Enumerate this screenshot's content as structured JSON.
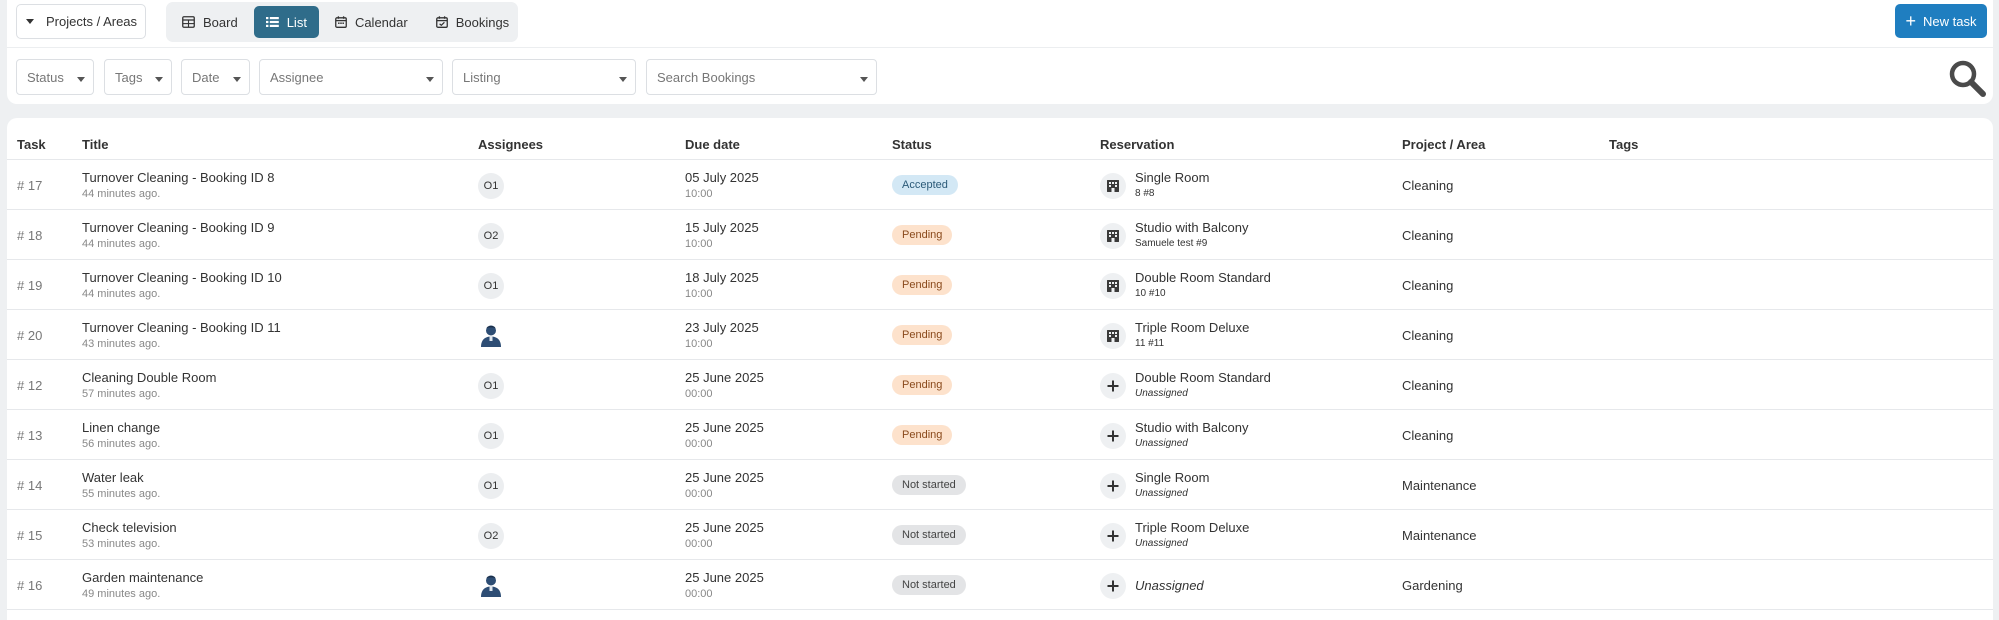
{
  "toolbar": {
    "project_selector": "Projects / Areas",
    "views": [
      {
        "label": "Board",
        "icon": "table-icon",
        "active": false
      },
      {
        "label": "List",
        "icon": "list-icon",
        "active": true
      },
      {
        "label": "Calendar",
        "icon": "calendar-icon",
        "active": false
      },
      {
        "label": "Bookings",
        "icon": "calendar-check-icon",
        "active": false
      }
    ],
    "new_task": "New task"
  },
  "filters": {
    "status": "Status",
    "tags": "Tags",
    "date": "Date",
    "assignee": "Assignee",
    "listing": "Listing",
    "search_bookings": "Search Bookings"
  },
  "table": {
    "headers": {
      "task": "Task",
      "title": "Title",
      "assignees": "Assignees",
      "due_date": "Due date",
      "status": "Status",
      "reservation": "Reservation",
      "project": "Project / Area",
      "tags": "Tags"
    },
    "rows": [
      {
        "id": "# 17",
        "title": "Turnover Cleaning - Booking ID 8",
        "created": "44 minutes ago.",
        "assignee": "O1",
        "due": "05 July 2025",
        "time": "10:00",
        "status": "Accepted",
        "res_icon": "building-icon",
        "res_name": "Single Room",
        "res_sub": "8 #8",
        "project": "Cleaning"
      },
      {
        "id": "# 18",
        "title": "Turnover Cleaning - Booking ID 9",
        "created": "44 minutes ago.",
        "assignee": "O2",
        "due": "15 July 2025",
        "time": "10:00",
        "status": "Pending",
        "res_icon": "building-icon",
        "res_name": "Studio with Balcony",
        "res_sub": "Samuele test #9",
        "project": "Cleaning"
      },
      {
        "id": "# 19",
        "title": "Turnover Cleaning - Booking ID 10",
        "created": "44 minutes ago.",
        "assignee": "O1",
        "due": "18 July 2025",
        "time": "10:00",
        "status": "Pending",
        "res_icon": "building-icon",
        "res_name": "Double Room Standard",
        "res_sub": "10 #10",
        "project": "Cleaning"
      },
      {
        "id": "# 20",
        "title": "Turnover Cleaning - Booking ID 11",
        "created": "43 minutes ago.",
        "assignee": "",
        "due": "23 July 2025",
        "time": "10:00",
        "status": "Pending",
        "res_icon": "building-icon",
        "res_name": "Triple Room Deluxe",
        "res_sub": "11 #11",
        "project": "Cleaning"
      },
      {
        "id": "# 12",
        "title": "Cleaning Double Room",
        "created": "57 minutes ago.",
        "assignee": "O1",
        "due": "25 June 2025",
        "time": "00:00",
        "status": "Pending",
        "res_icon": "plus-icon",
        "res_name": "Double Room Standard",
        "res_sub": "Unassigned",
        "project": "Cleaning"
      },
      {
        "id": "# 13",
        "title": "Linen change",
        "created": "56 minutes ago.",
        "assignee": "O1",
        "due": "25 June 2025",
        "time": "00:00",
        "status": "Pending",
        "res_icon": "plus-icon",
        "res_name": "Studio with Balcony",
        "res_sub": "Unassigned",
        "project": "Cleaning"
      },
      {
        "id": "# 14",
        "title": "Water leak",
        "created": "55 minutes ago.",
        "assignee": "O1",
        "due": "25 June 2025",
        "time": "00:00",
        "status": "Not started",
        "res_icon": "plus-icon",
        "res_name": "Single Room",
        "res_sub": "Unassigned",
        "project": "Maintenance"
      },
      {
        "id": "# 15",
        "title": "Check television",
        "created": "53 minutes ago.",
        "assignee": "O2",
        "due": "25 June 2025",
        "time": "00:00",
        "status": "Not started",
        "res_icon": "plus-icon",
        "res_name": "Triple Room Deluxe",
        "res_sub": "Unassigned",
        "project": "Maintenance"
      },
      {
        "id": "# 16",
        "title": "Garden maintenance",
        "created": "49 minutes ago.",
        "assignee": "",
        "due": "25 June 2025",
        "time": "00:00",
        "status": "Not started",
        "res_icon": "plus-icon",
        "res_name": "Unassigned",
        "res_sub": "",
        "project": "Gardening"
      }
    ]
  },
  "colors": {
    "accent": "#2f6c8a",
    "primary_button": "#1f7ec0",
    "status_accepted_bg": "#d3e8f5",
    "status_pending_bg": "#fde2cc",
    "status_not_started_bg": "#e3e4e6"
  }
}
